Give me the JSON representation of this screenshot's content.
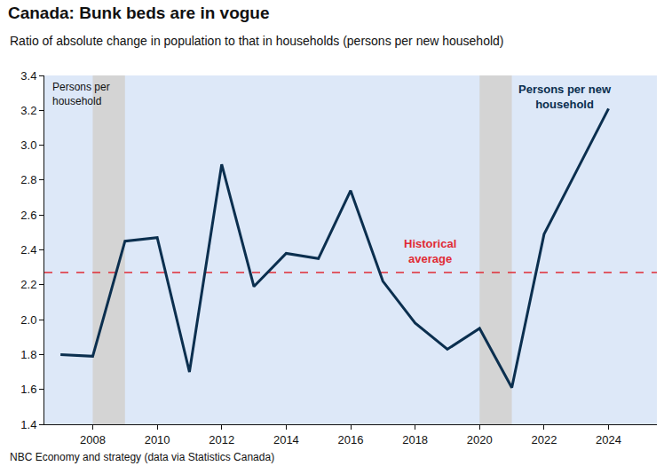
{
  "chart_data": {
    "type": "line",
    "title": "Canada: Bunk beds are in vogue",
    "subtitle": "Ratio of absolute change in population to that in households (persons per new household)",
    "y_label": "Persons per\nhousehold",
    "source": "NBC Economy and strategy (data via Statistics Canada)",
    "x": [
      2007,
      2008,
      2009,
      2010,
      2011,
      2012,
      2013,
      2014,
      2015,
      2016,
      2017,
      2018,
      2019,
      2020,
      2021,
      2022,
      2023,
      2024
    ],
    "series": [
      {
        "name": "Persons per new household",
        "color": "#0b2f4f",
        "values": [
          1.8,
          1.79,
          2.45,
          2.47,
          1.7,
          2.89,
          2.19,
          2.38,
          2.35,
          2.74,
          2.22,
          1.98,
          1.83,
          1.95,
          1.61,
          2.49,
          2.85,
          3.21
        ]
      }
    ],
    "reference_line": {
      "label": "Historical average",
      "value": 2.27,
      "color": "#e02b35",
      "line_style": "dashed"
    },
    "shaded_periods": [
      [
        2008,
        2009
      ],
      [
        2020,
        2021
      ]
    ],
    "xlim": [
      2006.5,
      2025.5
    ],
    "xticks": [
      2008,
      2010,
      2012,
      2014,
      2016,
      2018,
      2020,
      2022,
      2024
    ],
    "ylim": [
      1.4,
      3.4
    ],
    "yticks": [
      1.4,
      1.6,
      1.8,
      {
        "value": 2,
        "label": "2.0"
      },
      2.2,
      2.4,
      2.6,
      2.8,
      {
        "value": 3,
        "label": "3.0"
      },
      3.2,
      3.4
    ],
    "grid": false
  }
}
